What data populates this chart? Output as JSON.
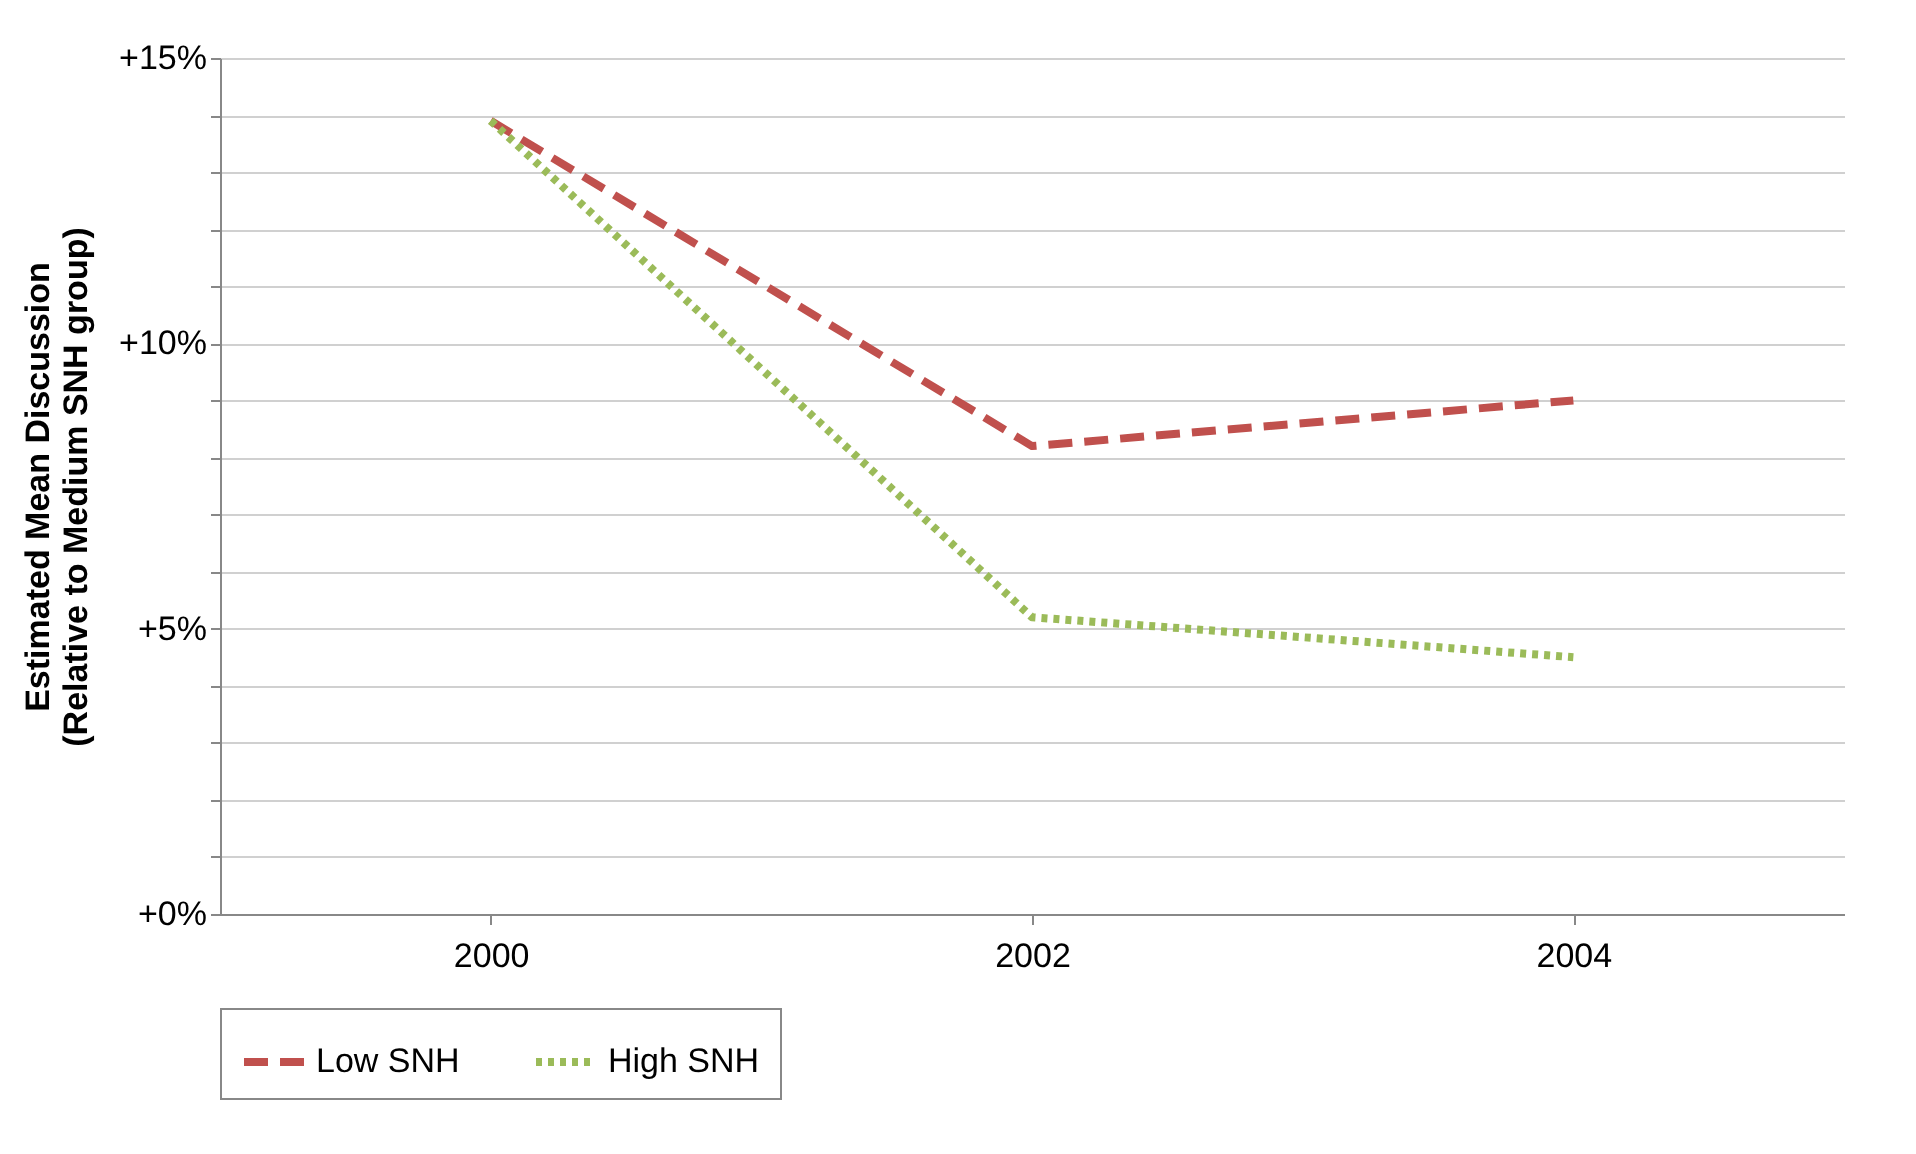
{
  "chart_data": {
    "type": "line",
    "ylabel": "Estimated Mean Discussion\n(Relative to Medium SNH group)",
    "categories": [
      "2000",
      "2002",
      "2004"
    ],
    "series": [
      {
        "name": "Low SNH",
        "color": "#c0504d",
        "line_style": "dashed",
        "values": [
          13.9,
          8.2,
          9.0
        ]
      },
      {
        "name": "High SNH",
        "color": "#9bbb59",
        "line_style": "dotted",
        "values": [
          13.9,
          5.2,
          4.5
        ]
      }
    ],
    "ylim": [
      0,
      15
    ],
    "yticks": [
      {
        "value": 0,
        "label": "+0%"
      },
      {
        "value": 1,
        "label": null
      },
      {
        "value": 2,
        "label": null
      },
      {
        "value": 3,
        "label": null
      },
      {
        "value": 4,
        "label": null
      },
      {
        "value": 5,
        "label": "+5%"
      },
      {
        "value": 6,
        "label": null
      },
      {
        "value": 7,
        "label": null
      },
      {
        "value": 8,
        "label": null
      },
      {
        "value": 9,
        "label": null
      },
      {
        "value": 10,
        "label": "+10%"
      },
      {
        "value": 11,
        "label": null
      },
      {
        "value": 12,
        "label": null
      },
      {
        "value": 13,
        "label": null
      },
      {
        "value": 14,
        "label": null
      },
      {
        "value": 15,
        "label": "+15%"
      }
    ],
    "grid": "y",
    "legend": "bottom",
    "marker": "none"
  }
}
